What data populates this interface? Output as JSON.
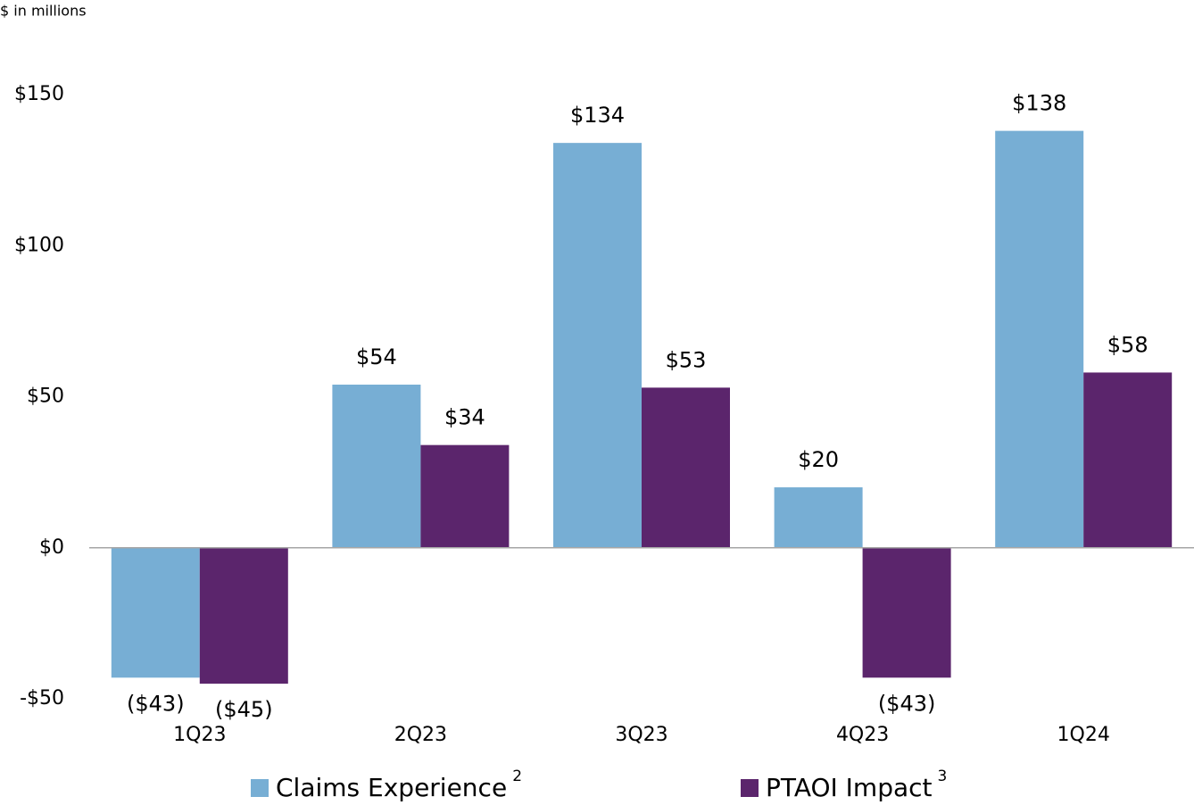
{
  "chart_data": {
    "type": "bar",
    "subtitle": "$ in millions",
    "categories": [
      "1Q23",
      "2Q23",
      "3Q23",
      "4Q23",
      "1Q24"
    ],
    "series": [
      {
        "name": "Claims Experience",
        "footnote": "2",
        "color": "#77aed4",
        "values": [
          -43,
          54,
          134,
          20,
          138
        ],
        "value_labels": [
          "($43)",
          "$54",
          "$134",
          "$20",
          "$138"
        ]
      },
      {
        "name": "PTAOI Impact",
        "footnote": "3",
        "color": "#5b256c",
        "values": [
          -45,
          34,
          53,
          -43,
          58
        ],
        "value_labels": [
          "($45)",
          "$34",
          "$53",
          "($43)",
          "$58"
        ]
      }
    ],
    "ylim": [
      -50,
      150
    ],
    "yticks": [
      {
        "value": -50,
        "label": "-$50"
      },
      {
        "value": 0,
        "label": "$0"
      },
      {
        "value": 50,
        "label": "$50"
      },
      {
        "value": 100,
        "label": "$100"
      },
      {
        "value": 150,
        "label": "$150"
      }
    ],
    "grid": false
  }
}
